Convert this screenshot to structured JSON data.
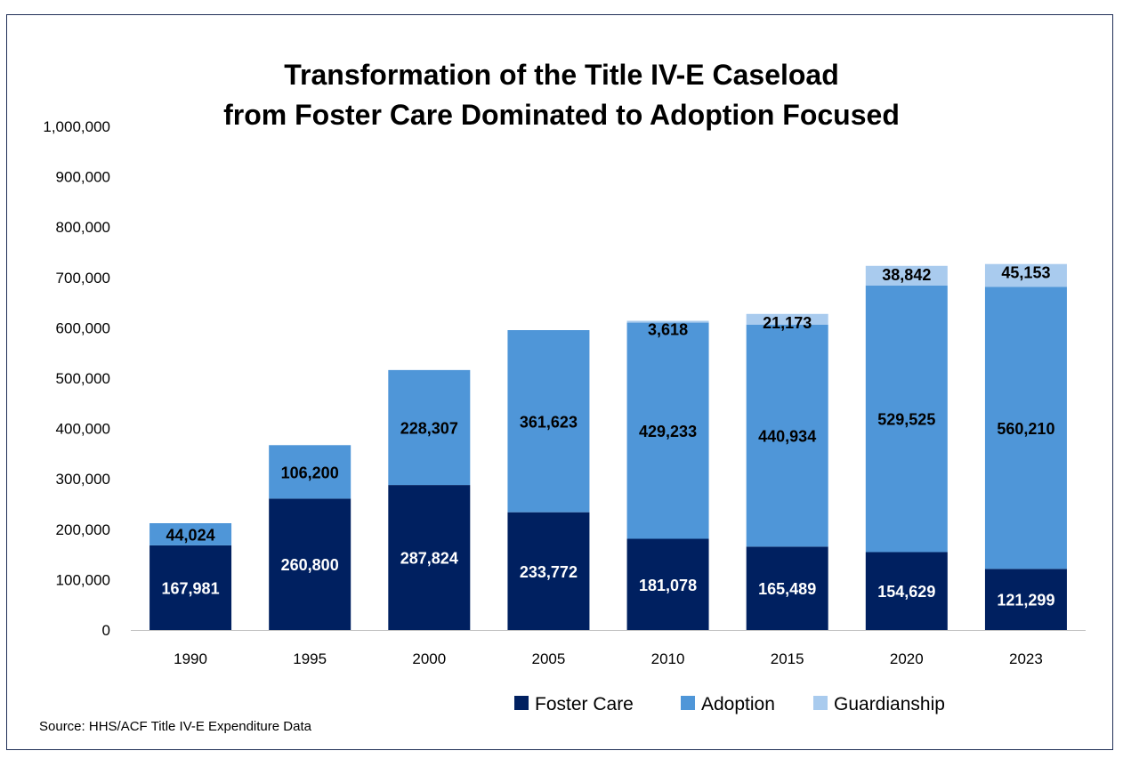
{
  "chart_data": {
    "type": "bar",
    "stacked": true,
    "title_line1": "Transformation of the Title IV-E Caseload",
    "title_line2": "from Foster Care Dominated to Adoption Focused",
    "categories": [
      "1990",
      "1995",
      "2000",
      "2005",
      "2010",
      "2015",
      "2020",
      "2023"
    ],
    "series": [
      {
        "name": "Foster Care",
        "color": "#002060",
        "label_color": "#ffffff",
        "values": [
          167981,
          260800,
          287824,
          233772,
          181078,
          165489,
          154629,
          121299
        ],
        "labels": [
          "167,981",
          "260,800",
          "287,824",
          "233,772",
          "181,078",
          "165,489",
          "154,629",
          "121,299"
        ]
      },
      {
        "name": "Adoption",
        "color": "#4f96d8",
        "label_color": "#000000",
        "values": [
          44024,
          106200,
          228307,
          361623,
          429233,
          440934,
          529525,
          560210
        ],
        "labels": [
          "44,024",
          "106,200",
          "228,307",
          "361,623",
          "429,233",
          "440,934",
          "529,525",
          "560,210"
        ]
      },
      {
        "name": "Guardianship",
        "color": "#a9cbee",
        "label_color": "#000000",
        "values": [
          0,
          0,
          0,
          0,
          3618,
          21173,
          38842,
          45153
        ],
        "labels": [
          "",
          "",
          "",
          "",
          "3,618",
          "21,173",
          "38,842",
          "45,153"
        ]
      }
    ],
    "yticks": [
      "0",
      "100,000",
      "200,000",
      "300,000",
      "400,000",
      "500,000",
      "600,000",
      "700,000",
      "800,000",
      "900,000",
      "1,000,000"
    ],
    "ylim": [
      0,
      1000000
    ],
    "grid": false,
    "legend_position": "bottom"
  },
  "source": "Source: HHS/ACF Title IV-E Expenditure Data"
}
